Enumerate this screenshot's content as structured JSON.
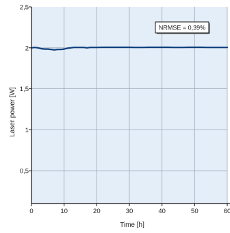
{
  "colors": {
    "plot_background": "#e4eef8",
    "grid": "#9aa7b6",
    "series": "#0d3f7e",
    "axis": "#111111",
    "annotation_box": "#ffffff"
  },
  "chart_data": {
    "type": "line",
    "xlabel": "Time [h]",
    "ylabel": "Laser power [W]",
    "xlim": [
      0,
      60
    ],
    "ylim": [
      0.1,
      2.5
    ],
    "x_ticks": [
      0,
      10,
      20,
      30,
      40,
      50,
      60
    ],
    "x_tick_labels": [
      "0",
      "10",
      "20",
      "30",
      "40",
      "50",
      "60"
    ],
    "y_ticks": [
      0.5,
      1,
      1.5,
      2,
      2.5
    ],
    "y_tick_labels": [
      "0,5",
      "1",
      "1,5",
      "2",
      "2,5"
    ],
    "grid": true,
    "annotation": "NRMSE = 0,39%",
    "series": [
      {
        "x": [
          0,
          1,
          2,
          3,
          4,
          5,
          6,
          7,
          8,
          9,
          10,
          11,
          12,
          13,
          14,
          15,
          16,
          17,
          18,
          19,
          20,
          22,
          24,
          26,
          28,
          30,
          32,
          34,
          36,
          38,
          40,
          42,
          44,
          46,
          48,
          50,
          52,
          54,
          56,
          58,
          60
        ],
        "y": [
          2.0,
          2.005,
          2.0,
          1.99,
          1.985,
          1.985,
          1.98,
          1.975,
          1.98,
          1.98,
          1.985,
          1.995,
          2.0,
          2.005,
          2.005,
          2.005,
          2.005,
          2.0,
          2.005,
          2.005,
          2.005,
          2.007,
          2.007,
          2.007,
          2.007,
          2.007,
          2.005,
          2.005,
          2.007,
          2.007,
          2.007,
          2.007,
          2.005,
          2.005,
          2.007,
          2.007,
          2.007,
          2.005,
          2.005,
          2.005,
          2.005
        ]
      }
    ]
  }
}
